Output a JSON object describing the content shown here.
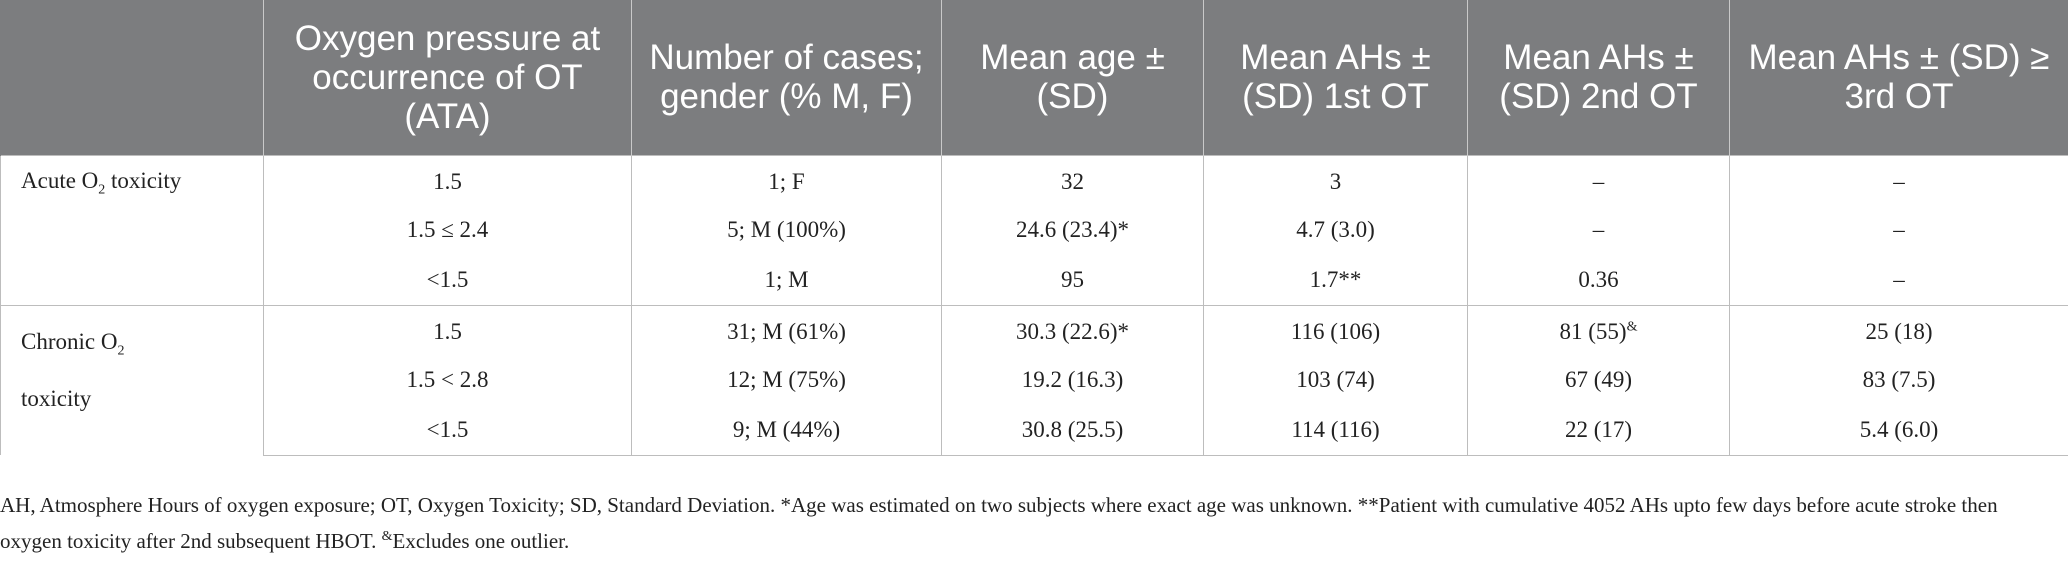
{
  "headers": [
    "",
    "Oxygen pressure at occurrence of OT (ATA)",
    "Number of cases; gender (% M, F)",
    "Mean age ± (SD)",
    "Mean AHs ± (SD) 1st OT",
    "Mean AHs ± (SD) 2nd OT",
    "Mean AHs ± (SD) ≥ 3rd OT"
  ],
  "groups": {
    "acute": {
      "label_main": "Acute O",
      "label_sub": "2",
      "label_tail": " toxicity",
      "rows": [
        {
          "pressure": "1.5",
          "cases": "1; F",
          "age": "32",
          "ot1": "3",
          "ot2": "–",
          "ot3": "–"
        },
        {
          "pressure": "1.5 ≤ 2.4",
          "cases": "5; M (100%)",
          "age": "24.6 (23.4)*",
          "ot1": "4.7 (3.0)",
          "ot2": "–",
          "ot3": "–"
        },
        {
          "pressure": "<1.5",
          "cases": "1; M",
          "age": "95",
          "ot1": "1.7**",
          "ot2": "0.36",
          "ot3": "–"
        }
      ]
    },
    "chronic": {
      "label_main": "Chronic O",
      "label_sub": "2",
      "label_line2": "toxicity",
      "rows": [
        {
          "pressure": "1.5",
          "cases": "31; M (61%)",
          "age": "30.3 (22.6)*",
          "ot1": "116 (106)",
          "ot2": "81 (55)",
          "ot2_sup": "&",
          "ot3": "25 (18)"
        },
        {
          "pressure": "1.5 < 2.8",
          "cases": "12; M (75%)",
          "age": "19.2 (16.3)",
          "ot1": "103 (74)",
          "ot2": "67 (49)",
          "ot3": "83 (7.5)"
        },
        {
          "pressure": "<1.5",
          "cases": "9; M (44%)",
          "age": "30.8 (25.5)",
          "ot1": "114 (116)",
          "ot2": "22 (17)",
          "ot3": "5.4 (6.0)"
        }
      ]
    }
  },
  "footnote": {
    "part1": "AH, Atmosphere Hours of oxygen exposure; OT, Oxygen Toxicity; SD, Standard Deviation. *Age was estimated on two subjects where exact age was unknown. **Patient with cumulative 4052 AHs upto few days before acute stroke then oxygen toxicity after 2nd subsequent HBOT. ",
    "sup": "&",
    "part2": "Excludes one outlier."
  }
}
